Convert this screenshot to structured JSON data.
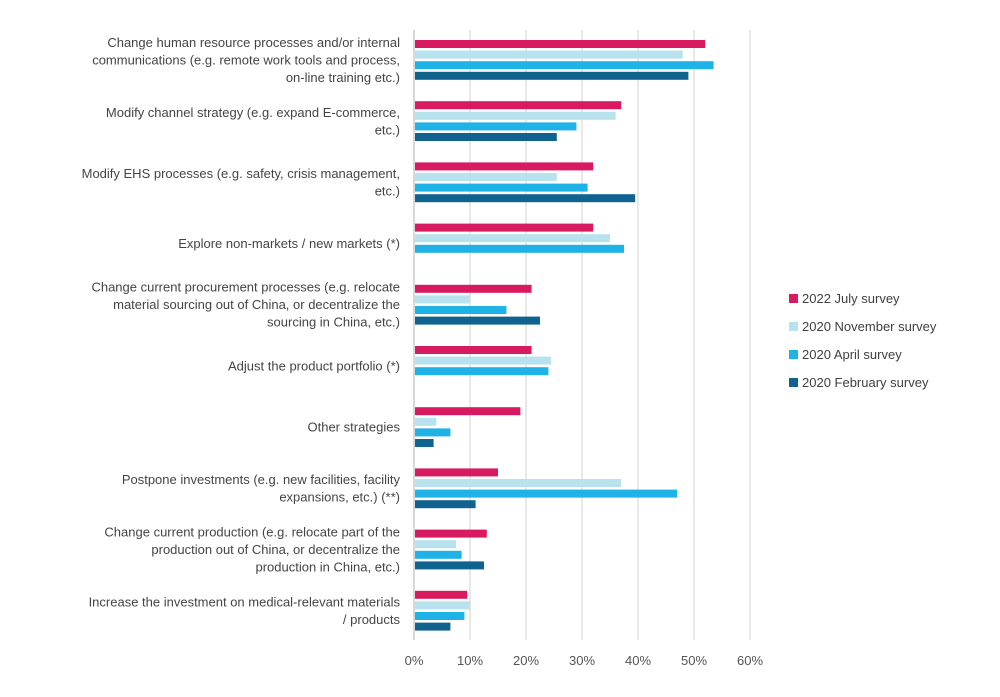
{
  "chart_data": {
    "type": "bar",
    "orientation": "horizontal",
    "categories": [
      [
        "Change human resource processes and/or internal",
        "communications (e.g. remote work tools and process,",
        "on-line training etc.)"
      ],
      [
        "Modify channel strategy (e.g. expand E-commerce,",
        "etc.)"
      ],
      [
        "Modify EHS processes (e.g. safety, crisis management,",
        "etc.)"
      ],
      [
        "Explore non-markets / new markets (*)"
      ],
      [
        "Change current procurement processes (e.g. relocate",
        "material sourcing out of China, or decentralize the",
        "sourcing in China, etc.)"
      ],
      [
        "Adjust the product portfolio (*)"
      ],
      [
        "Other strategies"
      ],
      [
        "Postpone investments (e.g. new facilities, facility",
        "expansions, etc.) (**)"
      ],
      [
        "Change current production (e.g. relocate part of the",
        "production out of China, or decentralize the",
        "production in China, etc.)"
      ],
      [
        "Increase the investment on medical-relevant materials",
        "/ products"
      ]
    ],
    "series": [
      {
        "name": "2022 July survey",
        "color": "#d81b60",
        "values": [
          52,
          37,
          32,
          32,
          21,
          21,
          19,
          15,
          13,
          9.5
        ]
      },
      {
        "name": "2020 November survey",
        "color": "#b9e2ef",
        "values": [
          48,
          36,
          25.5,
          35,
          10,
          24.5,
          4,
          37,
          7.5,
          10
        ]
      },
      {
        "name": "2020 April survey",
        "color": "#1fb2e6",
        "values": [
          53.5,
          29,
          31,
          37.5,
          16.5,
          24,
          6.5,
          47,
          8.5,
          9
        ]
      },
      {
        "name": "2020 February survey",
        "color": "#11638f",
        "values": [
          49,
          25.5,
          39.5,
          null,
          22.5,
          null,
          3.5,
          11,
          12.5,
          6.5
        ]
      }
    ],
    "x_ticks": [
      "0%",
      "10%",
      "20%",
      "30%",
      "40%",
      "50%",
      "60%"
    ],
    "xlim": [
      0,
      60
    ],
    "grid": true,
    "legend_position": "right"
  }
}
